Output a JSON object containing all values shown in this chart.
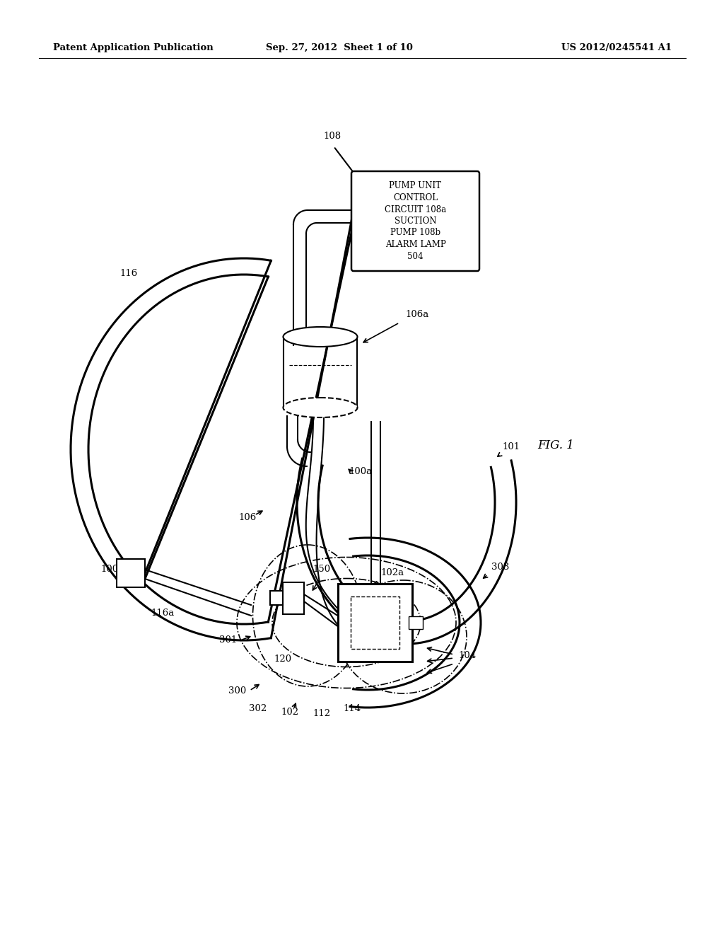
{
  "bg_color": "#ffffff",
  "line_color": "#000000",
  "header_left": "Patent Application Publication",
  "header_center": "Sep. 27, 2012  Sheet 1 of 10",
  "header_right": "US 2012/0245541 A1",
  "fig_label": "FIG. 1",
  "box_lines": [
    "PUMP UNIT",
    "CONTROL",
    "CIRCUIT 108a",
    "SUCTION",
    "PUMP 108b",
    "ALARM LAMP",
    "504"
  ]
}
